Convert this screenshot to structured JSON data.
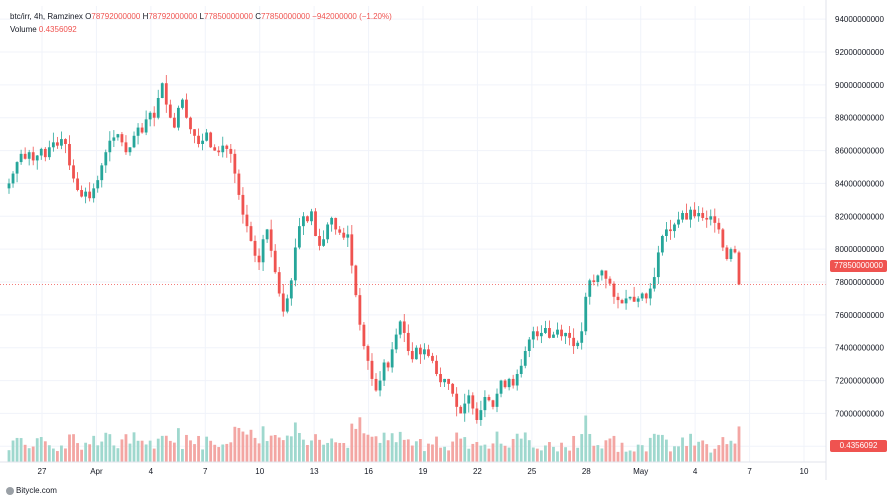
{
  "legend": {
    "symbol": "btc/irr, 4h, Ramzinex",
    "o_label": "O",
    "o_value": "78792000000",
    "h_label": "H",
    "h_value": "78792000000",
    "l_label": "L",
    "l_value": "77850000000",
    "c_label": "C",
    "c_value": "77850000000",
    "change": "−942000000 (−1.20%)",
    "volume_label": "Volume",
    "volume_value": "0.4356092"
  },
  "price_tag": "77850000000",
  "volume_tag": "0.4356092",
  "footer": "Bitycle.com",
  "colors": {
    "up": "#26a69a",
    "down": "#ef5350",
    "vol_up": "#9fd8ce",
    "vol_down": "#f3a6a3",
    "grid": "#f0f3fa"
  },
  "chart_data": {
    "type": "candlestick",
    "y_axis_ticks": [
      "94000000000",
      "92000000000",
      "90000000000",
      "88000000000",
      "86000000000",
      "84000000000",
      "82000000000",
      "80000000000",
      "78000000000",
      "76000000000",
      "74000000000",
      "72000000000",
      "70000000000",
      "68000000000"
    ],
    "ylim": [
      66800000000,
      94800000000
    ],
    "x_axis_ticks": [
      "27",
      "Apr",
      "4",
      "7",
      "10",
      "13",
      "16",
      "19",
      "22",
      "25",
      "28",
      "May",
      "4",
      "7",
      "10"
    ],
    "last_close": 77850000000,
    "closes_billions": [
      84.0,
      84.6,
      85.3,
      85.8,
      85.5,
      85.9,
      85.4,
      85.7,
      86.1,
      85.6,
      86.2,
      86.5,
      86.3,
      86.7,
      86.4,
      85.1,
      84.3,
      83.6,
      83.2,
      83.5,
      83.1,
      83.7,
      84.2,
      85.1,
      85.9,
      86.6,
      86.8,
      87.0,
      86.5,
      85.9,
      86.2,
      86.9,
      87.4,
      87.1,
      87.9,
      88.3,
      88.0,
      89.2,
      90.1,
      88.8,
      88.0,
      87.4,
      88.6,
      89.1,
      88.0,
      87.3,
      86.9,
      86.4,
      86.6,
      87.1,
      86.2,
      86.0,
      85.9,
      86.3,
      86.1,
      85.8,
      84.6,
      83.3,
      82.1,
      81.4,
      80.5,
      79.6,
      79.2,
      80.6,
      81.2,
      79.9,
      78.6,
      77.3,
      76.2,
      77.0,
      78.1,
      80.1,
      81.4,
      82.0,
      81.7,
      82.3,
      80.8,
      80.2,
      80.6,
      81.5,
      81.9,
      81.2,
      81.0,
      80.7,
      80.9,
      79.0,
      77.2,
      75.4,
      74.1,
      73.2,
      72.1,
      71.4,
      72.0,
      73.1,
      72.8,
      73.9,
      74.8,
      75.6,
      74.9,
      73.8,
      73.3,
      74.0,
      73.6,
      73.9,
      73.5,
      73.2,
      72.4,
      71.9,
      72.1,
      71.8,
      71.2,
      70.4,
      70.0,
      70.6,
      71.1,
      70.3,
      69.6,
      70.2,
      71.0,
      70.8,
      70.4,
      71.2,
      72.0,
      71.6,
      72.1,
      71.7,
      72.4,
      72.9,
      73.8,
      74.5,
      75.0,
      74.7,
      74.9,
      75.2,
      74.6,
      74.8,
      75.1,
      74.7,
      74.9,
      74.6,
      74.1,
      74.3,
      75.0,
      77.1,
      78.1,
      78.0,
      78.4,
      78.7,
      78.2,
      77.9,
      77.1,
      76.9,
      76.7,
      77.0,
      77.1,
      76.8,
      77.0,
      77.3,
      77.0,
      77.6,
      78.3,
      79.8,
      80.8,
      81.2,
      81.1,
      81.5,
      81.8,
      82.2,
      81.8,
      82.4,
      82.0,
      82.2,
      81.9,
      81.8,
      82.0,
      81.6,
      81.2,
      80.1,
      79.4,
      80.0,
      79.8,
      77.85
    ]
  }
}
